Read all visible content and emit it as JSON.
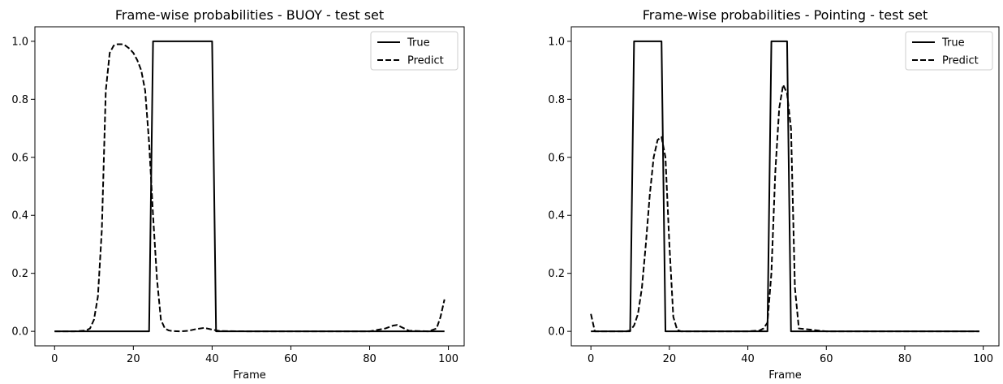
{
  "chart_data": [
    {
      "type": "line",
      "title": "Frame-wise probabilities - BUOY - test set",
      "xlabel": "Frame",
      "ylabel": "",
      "xlim": [
        -5,
        104
      ],
      "ylim": [
        -0.05,
        1.05
      ],
      "xticks": [
        0,
        20,
        40,
        60,
        80,
        100
      ],
      "yticks": [
        0.0,
        0.2,
        0.4,
        0.6,
        0.8,
        1.0
      ],
      "legend_position": "top-right",
      "grid": false,
      "series": [
        {
          "name": "True",
          "style": "solid",
          "color": "#000000",
          "x": [
            0,
            24,
            25,
            40,
            41,
            99
          ],
          "y": [
            0,
            0,
            1,
            1,
            0,
            0
          ]
        },
        {
          "name": "Predict",
          "style": "dashed",
          "color": "#000000",
          "x": [
            0,
            5,
            8,
            9,
            10,
            11,
            12,
            13,
            14,
            15,
            16,
            17,
            18,
            19,
            20,
            21,
            22,
            23,
            24,
            25,
            26,
            27,
            28,
            29,
            30,
            32,
            34,
            36,
            38,
            40,
            42,
            50,
            60,
            70,
            80,
            84,
            86,
            87,
            88,
            90,
            95,
            97,
            98,
            99
          ],
          "y": [
            0,
            0,
            0.003,
            0.01,
            0.04,
            0.12,
            0.35,
            0.83,
            0.96,
            0.985,
            0.99,
            0.99,
            0.985,
            0.975,
            0.96,
            0.935,
            0.9,
            0.83,
            0.65,
            0.4,
            0.18,
            0.04,
            0.01,
            0.003,
            0.001,
            0.0,
            0.002,
            0.008,
            0.012,
            0.006,
            0.001,
            0.0,
            0.0,
            0.0,
            0.0,
            0.01,
            0.02,
            0.022,
            0.015,
            0.002,
            0.0,
            0.01,
            0.05,
            0.11
          ]
        }
      ]
    },
    {
      "type": "line",
      "title": "Frame-wise probabilities - Pointing - test set",
      "xlabel": "Frame",
      "ylabel": "",
      "xlim": [
        -5,
        104
      ],
      "ylim": [
        -0.05,
        1.05
      ],
      "xticks": [
        0,
        20,
        40,
        60,
        80,
        100
      ],
      "yticks": [
        0.0,
        0.2,
        0.4,
        0.6,
        0.8,
        1.0
      ],
      "legend_position": "top-right",
      "grid": false,
      "series": [
        {
          "name": "True",
          "style": "solid",
          "color": "#000000",
          "x": [
            0,
            10,
            11,
            18,
            19,
            45,
            46,
            50,
            51,
            99
          ],
          "y": [
            0,
            0,
            1,
            1,
            0,
            0,
            1,
            1,
            0,
            0
          ]
        },
        {
          "name": "Predict",
          "style": "dashed",
          "color": "#000000",
          "x": [
            0,
            1,
            2,
            5,
            9,
            10,
            11,
            12,
            13,
            14,
            15,
            16,
            17,
            18,
            19,
            20,
            21,
            22,
            23,
            30,
            40,
            43,
            44,
            45,
            46,
            47,
            48,
            49,
            50,
            51,
            52,
            53,
            60,
            70,
            80,
            90,
            99
          ],
          "y": [
            0.06,
            0.0,
            0.0,
            0.0,
            0.0,
            0.003,
            0.02,
            0.06,
            0.15,
            0.3,
            0.47,
            0.6,
            0.66,
            0.67,
            0.6,
            0.3,
            0.05,
            0.005,
            0.0,
            0.0,
            0.0,
            0.003,
            0.01,
            0.03,
            0.2,
            0.55,
            0.77,
            0.85,
            0.82,
            0.7,
            0.15,
            0.01,
            0.0,
            0.0,
            0.0,
            0.0,
            0.0
          ]
        }
      ]
    }
  ]
}
